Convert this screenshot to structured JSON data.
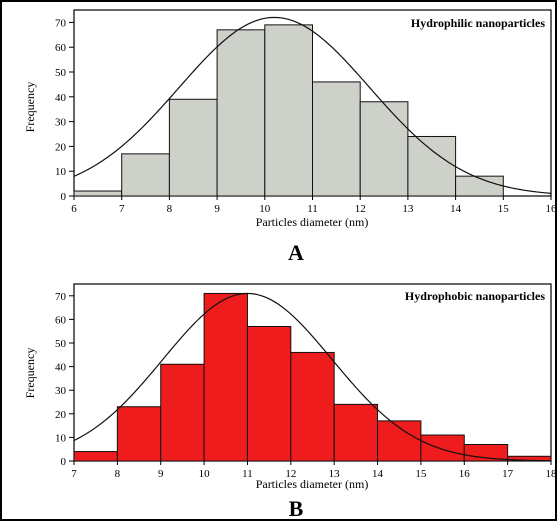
{
  "chart_data": [
    {
      "type": "bar",
      "panel_label": "A",
      "legend": "Hydrophilic nanoparticles",
      "xlabel": "Particles diameter (nm)",
      "ylabel": "Frequency",
      "xlim": [
        6,
        16
      ],
      "ylim": [
        0,
        75
      ],
      "xticks": [
        "6",
        "7",
        "8",
        "9",
        "10",
        "11",
        "12",
        "13",
        "14",
        "15",
        "16"
      ],
      "yticks": [
        "0",
        "10",
        "20",
        "30",
        "40",
        "50",
        "60",
        "70"
      ],
      "bin_width": 1,
      "bins": [
        {
          "start": 6,
          "value": 2
        },
        {
          "start": 7,
          "value": 17
        },
        {
          "start": 8,
          "value": 39
        },
        {
          "start": 9,
          "value": 67
        },
        {
          "start": 10,
          "value": 69
        },
        {
          "start": 11,
          "value": 46
        },
        {
          "start": 12,
          "value": 38
        },
        {
          "start": 13,
          "value": 24
        },
        {
          "start": 14,
          "value": 8
        },
        {
          "start": 15,
          "value": 0
        }
      ],
      "fit_curve": {
        "type": "gaussian",
        "peak": 72,
        "center": 10.2,
        "sigma": 2.0
      },
      "colors": {
        "bar": "#cdd1c9",
        "edge": "#111111",
        "curve": "#111111"
      }
    },
    {
      "type": "bar",
      "panel_label": "B",
      "legend": "Hydrophobic nanoparticles",
      "xlabel": "Particles diameter (nm)",
      "ylabel": "Frequency",
      "xlim": [
        7,
        18
      ],
      "ylim": [
        0,
        75
      ],
      "xticks": [
        "7",
        "8",
        "9",
        "10",
        "11",
        "12",
        "13",
        "14",
        "15",
        "16",
        "17",
        "18"
      ],
      "yticks": [
        "0",
        "10",
        "20",
        "30",
        "40",
        "50",
        "60",
        "70"
      ],
      "bin_width": 1,
      "bins": [
        {
          "start": 7,
          "value": 4
        },
        {
          "start": 8,
          "value": 23
        },
        {
          "start": 9,
          "value": 41
        },
        {
          "start": 10,
          "value": 71
        },
        {
          "start": 11,
          "value": 57
        },
        {
          "start": 12,
          "value": 46
        },
        {
          "start": 13,
          "value": 24
        },
        {
          "start": 14,
          "value": 17
        },
        {
          "start": 15,
          "value": 11
        },
        {
          "start": 16,
          "value": 7
        },
        {
          "start": 17,
          "value": 2
        }
      ],
      "fit_curve": {
        "type": "gaussian",
        "peak": 71,
        "center": 11.0,
        "sigma": 1.95
      },
      "colors": {
        "bar": "#ee1c1c",
        "edge": "#111111",
        "curve": "#111111"
      }
    }
  ]
}
